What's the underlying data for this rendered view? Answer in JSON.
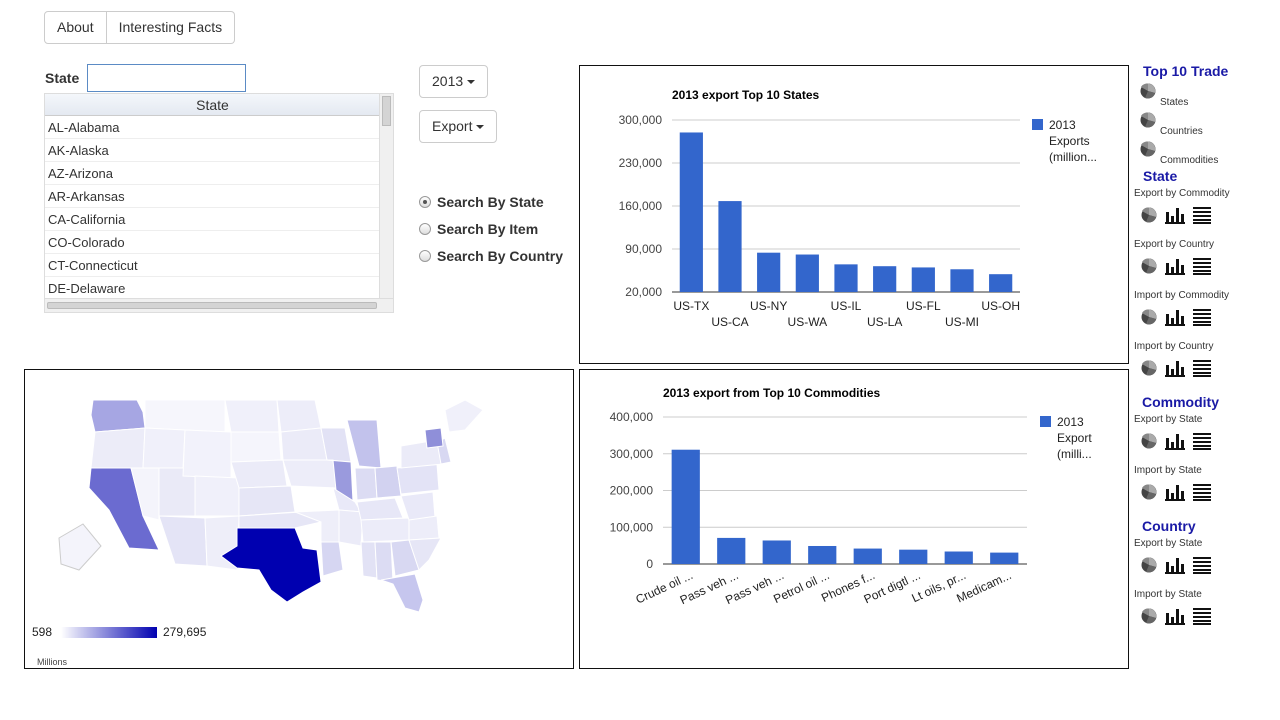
{
  "nav": {
    "about": "About",
    "facts": "Interesting Facts"
  },
  "year_dropdown": {
    "value": "2013"
  },
  "type_dropdown": {
    "value": "Export"
  },
  "state_search": {
    "label": "State",
    "input_value": "",
    "column_header": "State",
    "rows": [
      "AL-Alabama",
      "AK-Alaska",
      "AZ-Arizona",
      "AR-Arkansas",
      "CA-California",
      "CO-Colorado",
      "CT-Connecticut",
      "DE-Delaware"
    ]
  },
  "search_options": [
    {
      "label": "Search By State",
      "checked": true
    },
    {
      "label": "Search By Item",
      "checked": false
    },
    {
      "label": "Search By Country",
      "checked": false
    }
  ],
  "map": {
    "legend_min": "598",
    "legend_max": "279,695",
    "unit": "Millions"
  },
  "chart_data": [
    {
      "type": "bar",
      "title": "2013 export Top 10 States",
      "categories": [
        "US-TX",
        "US-CA",
        "US-NY",
        "US-WA",
        "US-IL",
        "US-LA",
        "US-FL",
        "US-MI",
        "US-OH"
      ],
      "series": [
        {
          "name": "2013 Exports (million...",
          "values": [
            279695,
            168000,
            84000,
            81000,
            65000,
            62000,
            60000,
            57000,
            49000
          ]
        }
      ],
      "ylim": [
        20000,
        300000
      ],
      "yticks": [
        "300,000",
        "230,000",
        "160,000",
        "90,000",
        "20,000"
      ],
      "legend_lines": [
        "2013",
        "Exports",
        "(million..."
      ],
      "color": "#3366cc"
    },
    {
      "type": "bar",
      "title": "2013 export from Top 10 Commodities",
      "categories": [
        "Crude oil ...",
        "Pass veh ...",
        "Pass veh ...",
        "Petrol oil ...",
        "Phones f...",
        "Port digtl ...",
        "Lt oils, pr...",
        "Medicam..."
      ],
      "series": [
        {
          "name": "2013 Export (milli...",
          "values": [
            311000,
            71000,
            64000,
            49000,
            42000,
            39000,
            34000,
            31000
          ]
        }
      ],
      "ylim": [
        0,
        400000
      ],
      "yticks": [
        "400,000",
        "300,000",
        "200,000",
        "100,000",
        "0"
      ],
      "legend_lines": [
        "2013",
        "Export",
        "(milli..."
      ],
      "color": "#3366cc"
    }
  ],
  "sidebar": {
    "top10": {
      "title": "Top 10 Trade",
      "items": [
        "States",
        "Countries",
        "Commodities"
      ]
    },
    "state": {
      "title": "State",
      "items": [
        "Export by Commodity",
        "Export by Country",
        "Import by Commodity",
        "Import by Country"
      ]
    },
    "commodity": {
      "title": "Commodity",
      "items": [
        "Export by State",
        "Import by State"
      ]
    },
    "country": {
      "title": "Country",
      "items": [
        "Export by State",
        "Import by State"
      ]
    }
  }
}
